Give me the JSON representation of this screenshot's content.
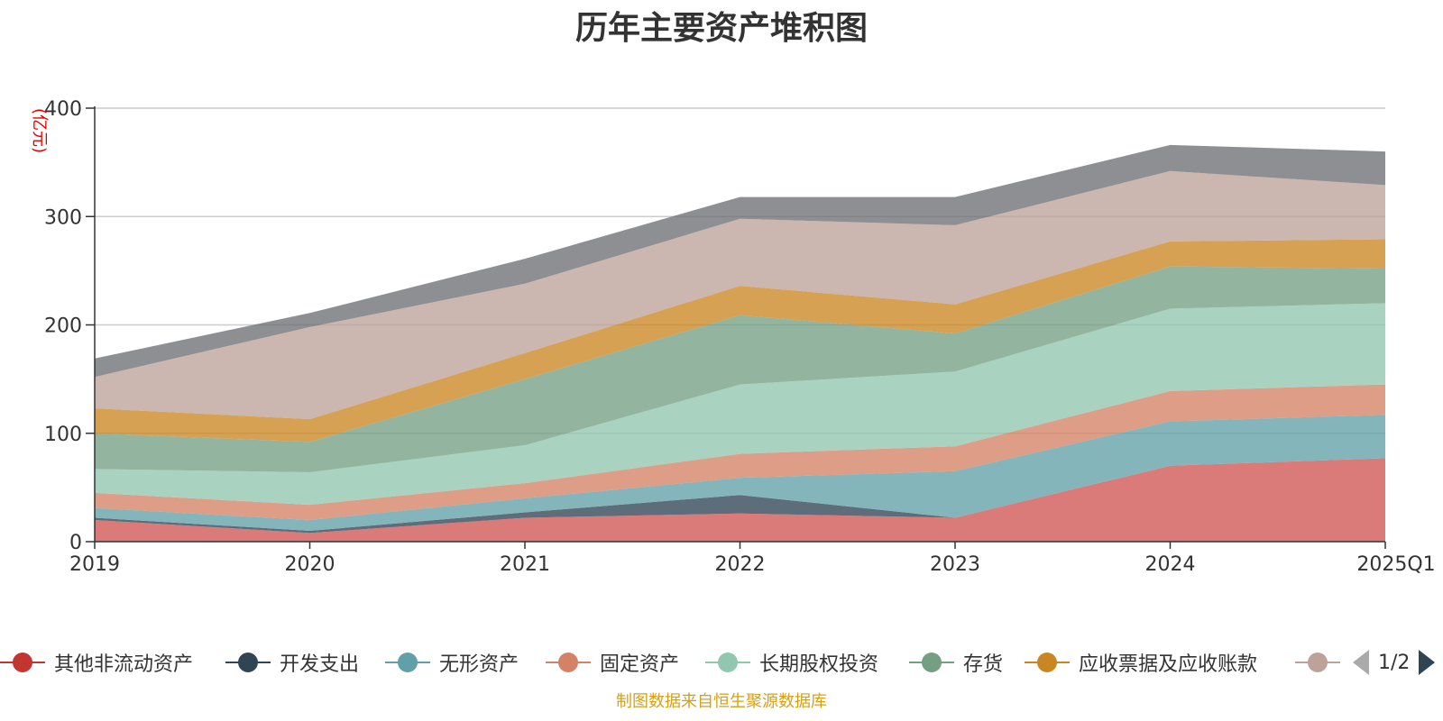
{
  "title": "历年主要资产堆积图",
  "chart_data": {
    "type": "area",
    "stacked": true,
    "title": "历年主要资产堆积图",
    "ylabel": "(亿元)",
    "xlabel": "",
    "ylim": [
      0,
      400
    ],
    "yticks": [
      0,
      100,
      200,
      300,
      400
    ],
    "grid": true,
    "categories": [
      "2019",
      "2020",
      "2021",
      "2022",
      "2023",
      "2024",
      "2025Q1"
    ],
    "series": [
      {
        "name": "其他非流动资产",
        "color": "#d05654",
        "values": [
          20,
          8,
          22,
          26,
          22,
          70,
          77
        ]
      },
      {
        "name": "开发支出",
        "color": "#2f4554",
        "values": [
          2,
          2,
          5,
          17,
          0,
          0,
          0
        ]
      },
      {
        "name": "无形资产",
        "color": "#61a0a8",
        "values": [
          9,
          10,
          13,
          16,
          43,
          41,
          40
        ]
      },
      {
        "name": "固定资产",
        "color": "#d48265",
        "values": [
          14,
          14,
          14,
          22,
          23,
          28,
          28
        ]
      },
      {
        "name": "长期股权投资",
        "color": "#91c7ae",
        "values": [
          22,
          30,
          35,
          64,
          69,
          76,
          75
        ]
      },
      {
        "name": "存货",
        "color": "#749f83",
        "values": [
          33,
          28,
          61,
          64,
          35,
          39,
          32
        ]
      },
      {
        "name": "应收票据及应收账款",
        "color": "#ca8622",
        "values": [
          23,
          21,
          24,
          27,
          27,
          23,
          27
        ]
      },
      {
        "name": "",
        "color": "#bda29a",
        "values": [
          29,
          85,
          64,
          62,
          73,
          65,
          50
        ]
      },
      {
        "name": "",
        "color": "#6e7074",
        "values": [
          17,
          13,
          23,
          20,
          26,
          24,
          31
        ]
      }
    ]
  },
  "legend": {
    "items": [
      {
        "label": "其他非流动资产",
        "color": "#c23531"
      },
      {
        "label": "开发支出",
        "color": "#2f4554"
      },
      {
        "label": "无形资产",
        "color": "#61a0a8"
      },
      {
        "label": "固定资产",
        "color": "#d48265"
      },
      {
        "label": "长期股权投资",
        "color": "#91c7ae"
      },
      {
        "label": "存货",
        "color": "#749f83"
      },
      {
        "label": "应收票据及应收账款",
        "color": "#ca8622"
      },
      {
        "label": "",
        "color": "#bda29a"
      }
    ],
    "page_indicator": "1/2"
  },
  "source_note": "制图数据来自恒生聚源数据库"
}
